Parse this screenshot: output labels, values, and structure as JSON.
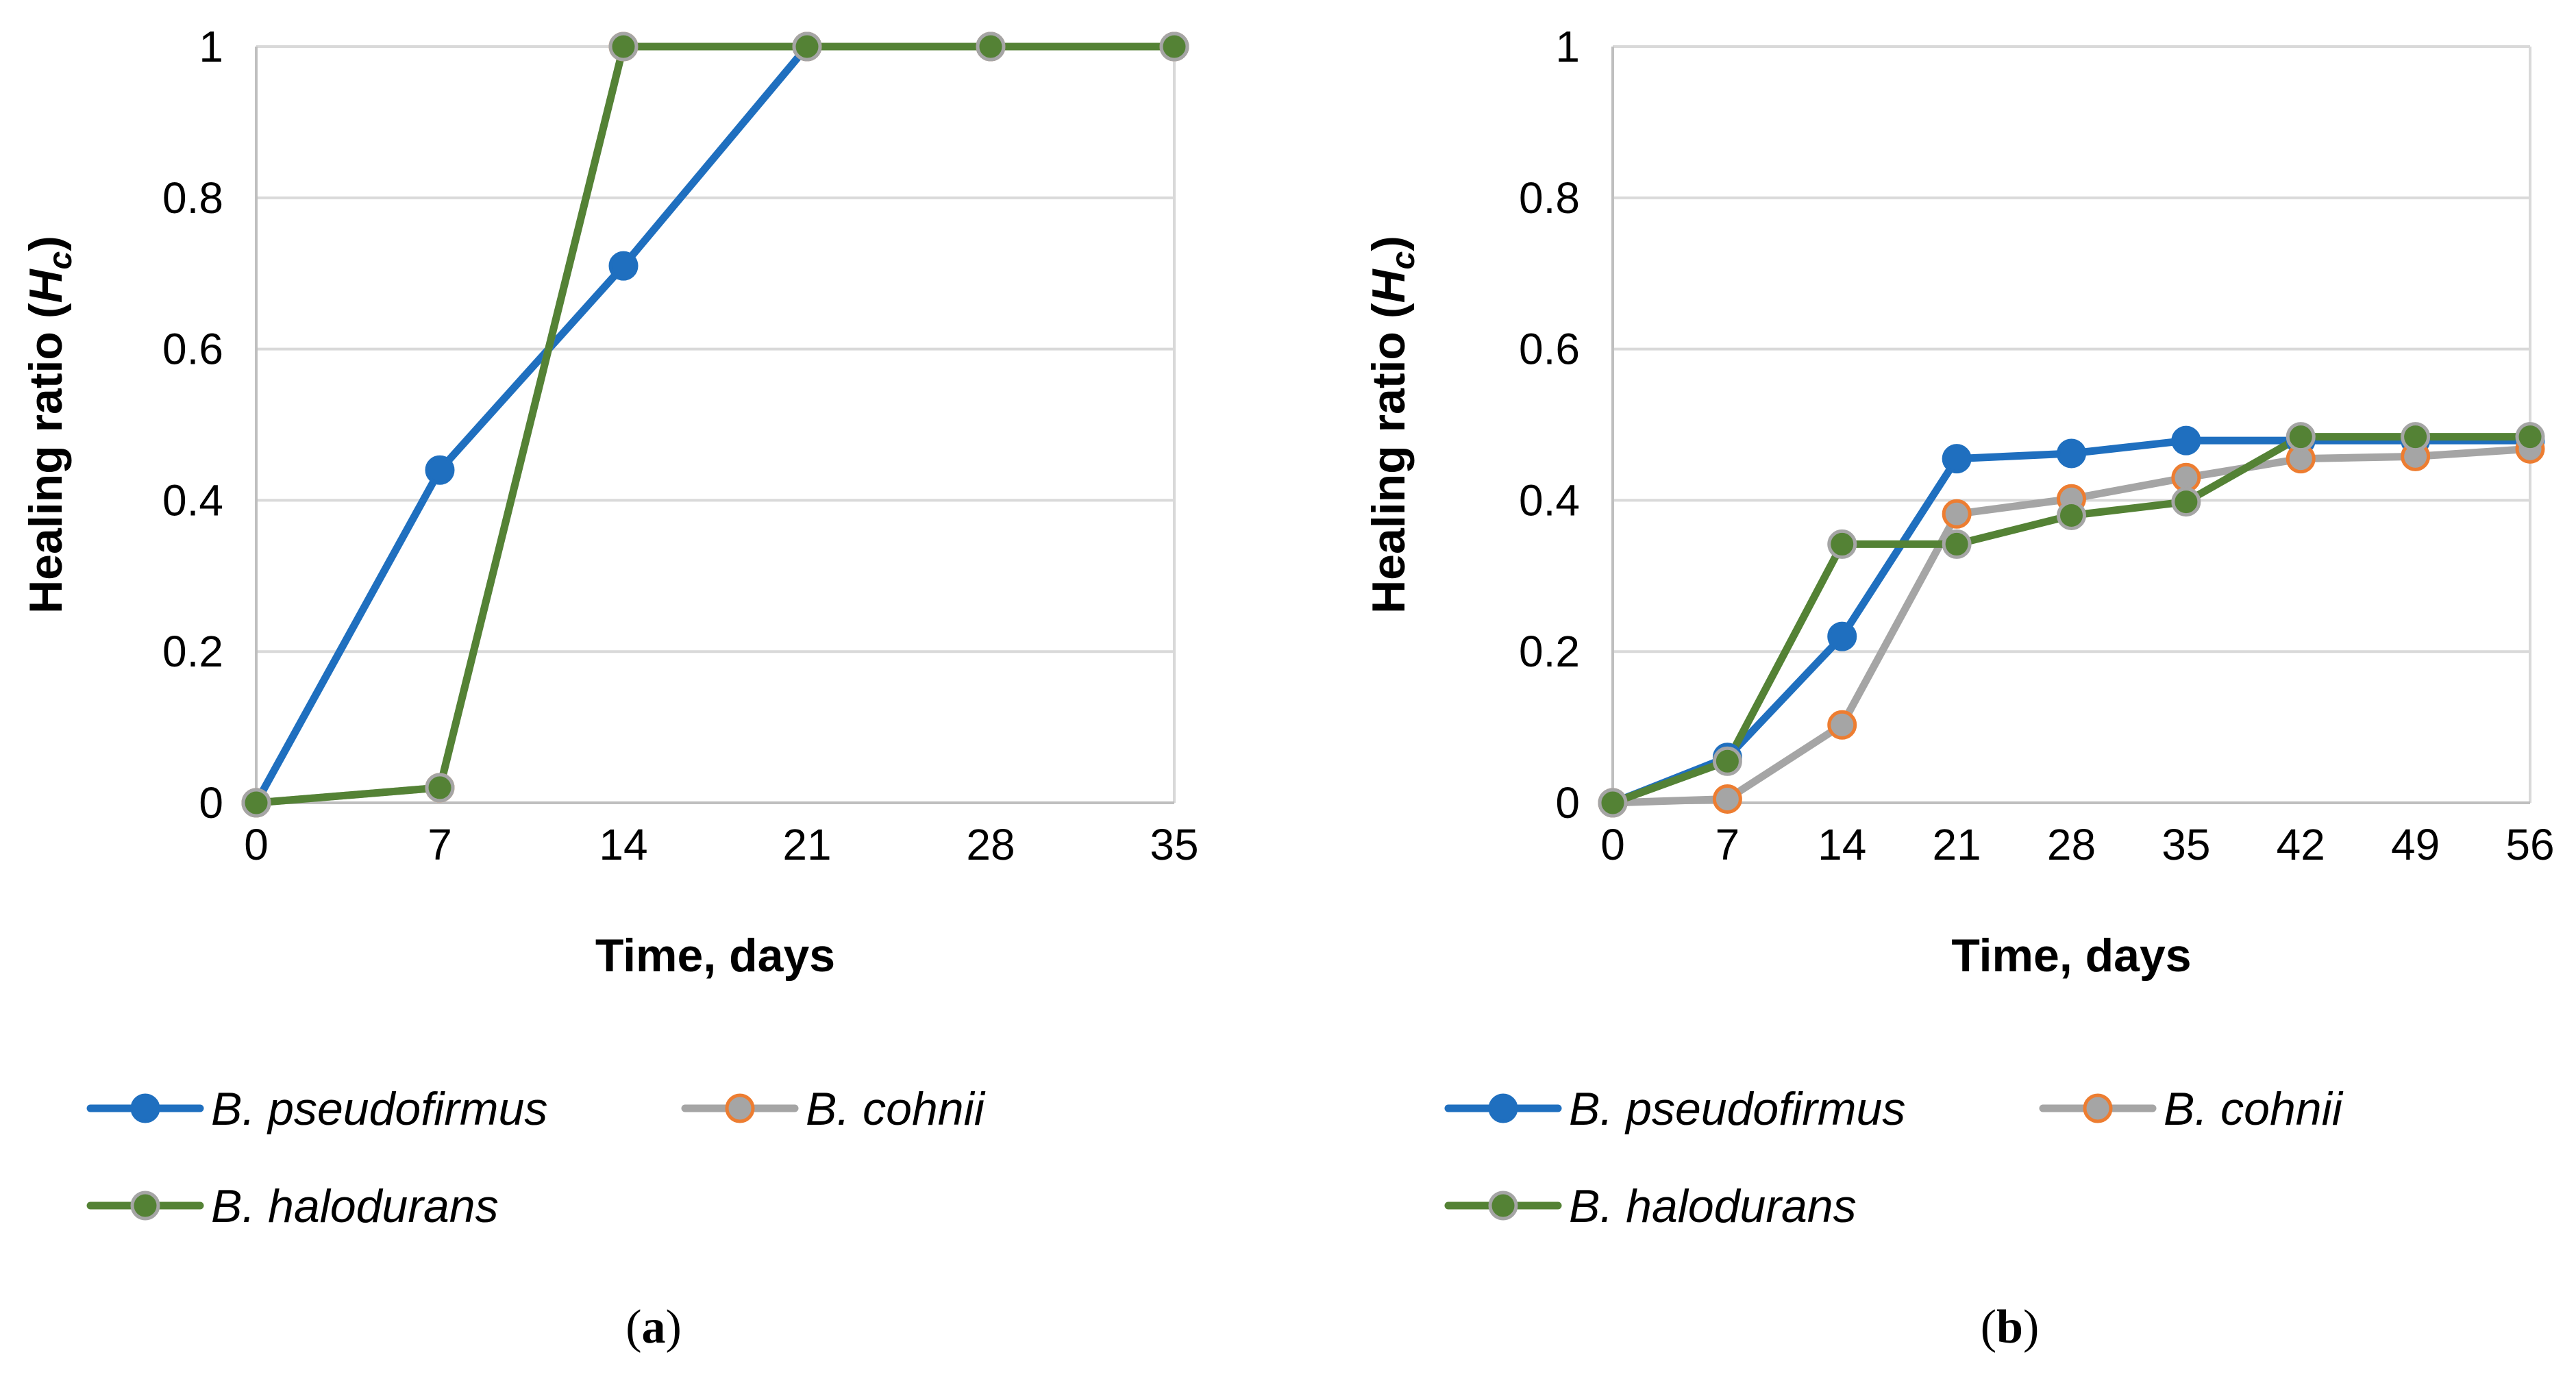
{
  "chart_data": [
    {
      "type": "line",
      "panel_label": "a",
      "caption_open": "(",
      "caption_close": ")",
      "xlabel": "Time, days",
      "ylabel_main": "Healing ratio (",
      "ylabel_var": "H",
      "ylabel_sub": "c",
      "ylabel_close": ")",
      "x": [
        0,
        7,
        14,
        21,
        28,
        35
      ],
      "x_tick_labels": [
        "0",
        "7",
        "14",
        "21",
        "28",
        "35"
      ],
      "ylim": [
        0,
        1
      ],
      "y_ticks": [
        0,
        0.2,
        0.4,
        0.6,
        0.8,
        1
      ],
      "y_tick_labels": [
        "0",
        "0.2",
        "0.4",
        "0.6",
        "0.8",
        "1"
      ],
      "grid": true,
      "legend_position": "bottom",
      "series": [
        {
          "name": "B. pseudofirmus",
          "color": "#1f6fbf",
          "marker_edge": "#1f6fbf",
          "values": [
            0,
            0.44,
            0.71,
            1,
            1,
            1
          ]
        },
        {
          "name": "B. cohnii",
          "color": "#a5a5a5",
          "marker_edge": "#ed7d31",
          "values": [
            0,
            0.02,
            1,
            1,
            1,
            1
          ]
        },
        {
          "name": "B. halodurans",
          "color": "#548235",
          "marker_edge": "#a5a5a5",
          "values": [
            0,
            0.02,
            1,
            1,
            1,
            1
          ]
        }
      ]
    },
    {
      "type": "line",
      "panel_label": "b",
      "caption_open": "(",
      "caption_close": ")",
      "xlabel": "Time, days",
      "ylabel_main": "Healing ratio (",
      "ylabel_var": "H",
      "ylabel_sub": "c",
      "ylabel_close": ")",
      "x": [
        0,
        7,
        14,
        21,
        28,
        35,
        42,
        49,
        56
      ],
      "x_tick_labels": [
        "0",
        "7",
        "14",
        "21",
        "28",
        "35",
        "42",
        "49",
        "56"
      ],
      "ylim": [
        0,
        1
      ],
      "y_ticks": [
        0,
        0.2,
        0.4,
        0.6,
        0.8,
        1
      ],
      "y_tick_labels": [
        "0",
        "0.2",
        "0.4",
        "0.6",
        "0.8",
        "1"
      ],
      "grid": true,
      "legend_position": "bottom",
      "series": [
        {
          "name": "B. pseudofirmus",
          "color": "#1f6fbf",
          "marker_edge": "#1f6fbf",
          "values": [
            0,
            0.06,
            0.22,
            0.455,
            0.462,
            0.479,
            0.479,
            0.479,
            0.479
          ]
        },
        {
          "name": "B. cohnii",
          "color": "#a5a5a5",
          "marker_edge": "#ed7d31",
          "values": [
            0,
            0.005,
            0.103,
            0.382,
            0.402,
            0.43,
            0.455,
            0.458,
            0.468
          ]
        },
        {
          "name": "B. halodurans",
          "color": "#548235",
          "marker_edge": "#a5a5a5",
          "values": [
            0,
            0.055,
            0.342,
            0.342,
            0.38,
            0.398,
            0.484,
            0.484,
            0.484
          ]
        }
      ]
    }
  ]
}
